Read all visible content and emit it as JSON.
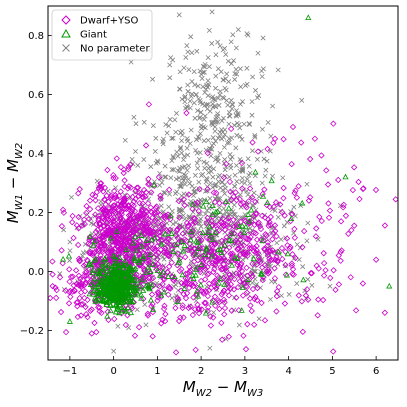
{
  "chart_data": {
    "type": "scatter",
    "title": "",
    "xlabel": {
      "main": "M",
      "sub1": "W2",
      "mid": " − M",
      "sub2": "W3"
    },
    "ylabel": {
      "main": "M",
      "sub1": "W1",
      "mid": " − M",
      "sub2": "W2"
    },
    "xlim": [
      -1.5,
      6.5
    ],
    "ylim": [
      -0.3,
      0.9
    ],
    "xticks": [
      -1,
      0,
      1,
      2,
      3,
      4,
      5,
      6
    ],
    "yticks": [
      -0.2,
      0.0,
      0.2,
      0.4,
      0.6,
      0.8
    ],
    "grid": false,
    "legend_position": "top-left",
    "series": [
      {
        "name": "No parameter",
        "marker": "x",
        "color": "#808080",
        "clusters": [
          {
            "cx": 2.3,
            "cy": 0.52,
            "sx": 0.55,
            "sy": 0.14,
            "n": 300
          },
          {
            "cx": 1.8,
            "cy": 0.18,
            "sx": 0.9,
            "sy": 0.12,
            "n": 400
          },
          {
            "cx": 0.3,
            "cy": 0.08,
            "sx": 0.6,
            "sy": 0.08,
            "n": 250
          },
          {
            "cx": 3.2,
            "cy": 0.05,
            "sx": 0.8,
            "sy": 0.1,
            "n": 150
          }
        ],
        "points": [
          [
            1.5,
            0.87
          ],
          [
            2.25,
            0.88
          ],
          [
            2.85,
            0.82
          ],
          [
            0.4,
            0.71
          ],
          [
            3.3,
            0.74
          ],
          [
            4.3,
            0.58
          ],
          [
            1.55,
            0.3
          ],
          [
            2.2,
            -0.26
          ],
          [
            0.0,
            -0.27
          ]
        ]
      },
      {
        "name": "Dwarf+YSO",
        "marker": "diamond",
        "color": "#cc00cc",
        "clusters": [
          {
            "cx": 0.2,
            "cy": 0.13,
            "sx": 0.45,
            "sy": 0.09,
            "n": 550
          },
          {
            "cx": 1.8,
            "cy": 0.02,
            "sx": 1.1,
            "sy": 0.1,
            "n": 450
          },
          {
            "cx": 3.4,
            "cy": 0.12,
            "sx": 1.1,
            "sy": 0.14,
            "n": 250
          },
          {
            "cx": -0.3,
            "cy": -0.04,
            "sx": 0.6,
            "sy": 0.06,
            "n": 200
          }
        ],
        "points": [
          [
            -1.45,
            -0.09
          ],
          [
            6.0,
            0.04
          ],
          [
            6.2,
            -0.14
          ],
          [
            4.6,
            0.45
          ],
          [
            4.1,
            0.49
          ],
          [
            5.2,
            0.17
          ],
          [
            5.7,
            0.28
          ],
          [
            -0.5,
            -0.21
          ]
        ]
      },
      {
        "name": "Giant",
        "marker": "triangle",
        "color": "#009900",
        "clusters": [
          {
            "cx": 0.05,
            "cy": -0.05,
            "sx": 0.22,
            "sy": 0.04,
            "n": 350
          },
          {
            "cx": 0.6,
            "cy": 0.0,
            "sx": 0.7,
            "sy": 0.06,
            "n": 90
          },
          {
            "cx": 2.4,
            "cy": 0.1,
            "sx": 1.0,
            "sy": 0.1,
            "n": 80
          }
        ],
        "points": [
          [
            4.45,
            0.86
          ],
          [
            6.3,
            -0.05
          ],
          [
            5.3,
            0.32
          ],
          [
            3.1,
            0.17
          ],
          [
            -1.0,
            -0.17
          ]
        ]
      }
    ]
  }
}
